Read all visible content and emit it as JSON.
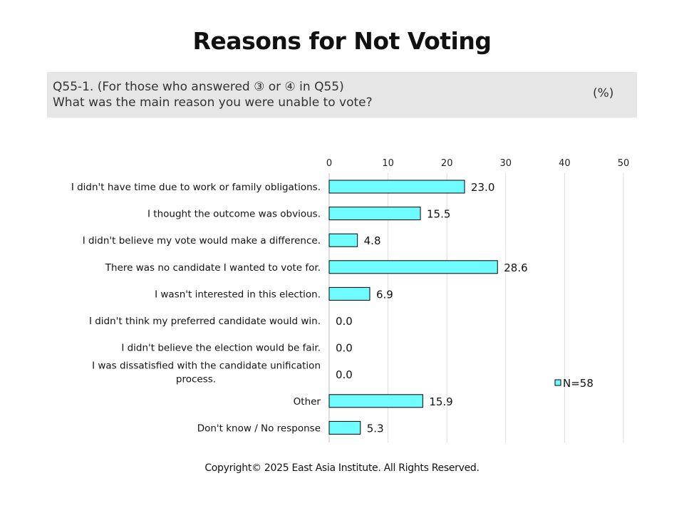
{
  "title": "Reasons for Not Voting",
  "question": {
    "line1": "Q55-1. (For those who answered ③ or ④ in Q55)",
    "line2": "What was the main reason you were unable to vote?",
    "unit": "(%)"
  },
  "chart_data": {
    "type": "bar",
    "orientation": "horizontal",
    "categories": [
      [
        "I didn't have time due to work or family obligations."
      ],
      [
        "I thought the outcome was obvious."
      ],
      [
        "I didn't believe my vote would make a difference."
      ],
      [
        "There was no candidate I wanted to vote for."
      ],
      [
        "I wasn't interested in this election."
      ],
      [
        "I didn't think my preferred candidate would win."
      ],
      [
        "I didn't believe the election would be fair."
      ],
      [
        "I was dissatisfied with the candidate unification",
        "process."
      ],
      [
        "Other"
      ],
      [
        "Don't know / No response"
      ]
    ],
    "values": [
      23.0,
      15.5,
      4.8,
      28.6,
      6.9,
      0.0,
      0.0,
      0.0,
      15.9,
      5.3
    ],
    "value_labels": [
      "23.0",
      "15.5",
      "4.8",
      "28.6",
      "6.9",
      "0.0",
      "0.0",
      "0.0",
      "15.9",
      "5.3"
    ],
    "xlim": [
      0,
      50
    ],
    "xticks": [
      0,
      10,
      20,
      30,
      40,
      50
    ],
    "x_axis_position": "top",
    "grid": true,
    "legend": {
      "label": "N=58",
      "position": "right"
    },
    "colors": {
      "bar_fill": "#6ffcff",
      "bar_stroke": "#000000",
      "grid": "#dddddd"
    }
  },
  "copyright": "Copyright© 2025 East Asia Institute. All Rights Reserved."
}
